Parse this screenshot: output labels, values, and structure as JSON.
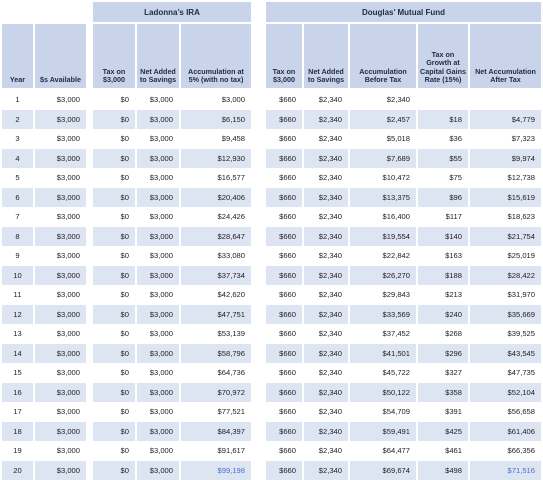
{
  "groups": {
    "ira": "Ladonna’s IRA",
    "fund": "Douglas’ Mutual Fund"
  },
  "headers": {
    "year": "Year",
    "available": "$s Available",
    "ira_tax": "Tax on $3,000",
    "ira_net": "Net Added to Savings",
    "ira_accum": "Accumulation at 5% (with no tax)",
    "fund_tax": "Tax on $3,000",
    "fund_net": "Net Added to Savings",
    "fund_before": "Accumulation Before Tax",
    "fund_cgtax": "Tax on Growth at Capital Gains Rate (15%)",
    "fund_after": "Net Accumulation After Tax"
  },
  "colors": {
    "header_bg": "#c9d4ea",
    "row_shade": "#dde4f2",
    "highlight_text": "#4a6fd0"
  },
  "rows": [
    {
      "year": "1",
      "available": "$3,000",
      "ira_tax": "$0",
      "ira_net": "$3,000",
      "ira_accum": "$3,000",
      "fund_tax": "$660",
      "fund_net": "$2,340",
      "fund_before": "$2,340",
      "fund_cgtax": "",
      "fund_after": ""
    },
    {
      "year": "2",
      "available": "$3,000",
      "ira_tax": "$0",
      "ira_net": "$3,000",
      "ira_accum": "$6,150",
      "fund_tax": "$660",
      "fund_net": "$2,340",
      "fund_before": "$2,457",
      "fund_cgtax": "$18",
      "fund_after": "$4,779"
    },
    {
      "year": "3",
      "available": "$3,000",
      "ira_tax": "$0",
      "ira_net": "$3,000",
      "ira_accum": "$9,458",
      "fund_tax": "$660",
      "fund_net": "$2,340",
      "fund_before": "$5,018",
      "fund_cgtax": "$36",
      "fund_after": "$7,323"
    },
    {
      "year": "4",
      "available": "$3,000",
      "ira_tax": "$0",
      "ira_net": "$3,000",
      "ira_accum": "$12,930",
      "fund_tax": "$660",
      "fund_net": "$2,340",
      "fund_before": "$7,689",
      "fund_cgtax": "$55",
      "fund_after": "$9,974"
    },
    {
      "year": "5",
      "available": "$3,000",
      "ira_tax": "$0",
      "ira_net": "$3,000",
      "ira_accum": "$16,577",
      "fund_tax": "$660",
      "fund_net": "$2,340",
      "fund_before": "$10,472",
      "fund_cgtax": "$75",
      "fund_after": "$12,738"
    },
    {
      "year": "6",
      "available": "$3,000",
      "ira_tax": "$0",
      "ira_net": "$3,000",
      "ira_accum": "$20,406",
      "fund_tax": "$660",
      "fund_net": "$2,340",
      "fund_before": "$13,375",
      "fund_cgtax": "$96",
      "fund_after": "$15,619"
    },
    {
      "year": "7",
      "available": "$3,000",
      "ira_tax": "$0",
      "ira_net": "$3,000",
      "ira_accum": "$24,426",
      "fund_tax": "$660",
      "fund_net": "$2,340",
      "fund_before": "$16,400",
      "fund_cgtax": "$117",
      "fund_after": "$18,623"
    },
    {
      "year": "8",
      "available": "$3,000",
      "ira_tax": "$0",
      "ira_net": "$3,000",
      "ira_accum": "$28,647",
      "fund_tax": "$660",
      "fund_net": "$2,340",
      "fund_before": "$19,554",
      "fund_cgtax": "$140",
      "fund_after": "$21,754"
    },
    {
      "year": "9",
      "available": "$3,000",
      "ira_tax": "$0",
      "ira_net": "$3,000",
      "ira_accum": "$33,080",
      "fund_tax": "$660",
      "fund_net": "$2,340",
      "fund_before": "$22,842",
      "fund_cgtax": "$163",
      "fund_after": "$25,019"
    },
    {
      "year": "10",
      "available": "$3,000",
      "ira_tax": "$0",
      "ira_net": "$3,000",
      "ira_accum": "$37,734",
      "fund_tax": "$660",
      "fund_net": "$2,340",
      "fund_before": "$26,270",
      "fund_cgtax": "$188",
      "fund_after": "$28,422"
    },
    {
      "year": "11",
      "available": "$3,000",
      "ira_tax": "$0",
      "ira_net": "$3,000",
      "ira_accum": "$42,620",
      "fund_tax": "$660",
      "fund_net": "$2,340",
      "fund_before": "$29,843",
      "fund_cgtax": "$213",
      "fund_after": "$31,970"
    },
    {
      "year": "12",
      "available": "$3,000",
      "ira_tax": "$0",
      "ira_net": "$3,000",
      "ira_accum": "$47,751",
      "fund_tax": "$660",
      "fund_net": "$2,340",
      "fund_before": "$33,569",
      "fund_cgtax": "$240",
      "fund_after": "$35,669"
    },
    {
      "year": "13",
      "available": "$3,000",
      "ira_tax": "$0",
      "ira_net": "$3,000",
      "ira_accum": "$53,139",
      "fund_tax": "$660",
      "fund_net": "$2,340",
      "fund_before": "$37,452",
      "fund_cgtax": "$268",
      "fund_after": "$39,525"
    },
    {
      "year": "14",
      "available": "$3,000",
      "ira_tax": "$0",
      "ira_net": "$3,000",
      "ira_accum": "$58,796",
      "fund_tax": "$660",
      "fund_net": "$2,340",
      "fund_before": "$41,501",
      "fund_cgtax": "$296",
      "fund_after": "$43,545"
    },
    {
      "year": "15",
      "available": "$3,000",
      "ira_tax": "$0",
      "ira_net": "$3,000",
      "ira_accum": "$64,736",
      "fund_tax": "$660",
      "fund_net": "$2,340",
      "fund_before": "$45,722",
      "fund_cgtax": "$327",
      "fund_after": "$47,735"
    },
    {
      "year": "16",
      "available": "$3,000",
      "ira_tax": "$0",
      "ira_net": "$3,000",
      "ira_accum": "$70,972",
      "fund_tax": "$660",
      "fund_net": "$2,340",
      "fund_before": "$50,122",
      "fund_cgtax": "$358",
      "fund_after": "$52,104"
    },
    {
      "year": "17",
      "available": "$3,000",
      "ira_tax": "$0",
      "ira_net": "$3,000",
      "ira_accum": "$77,521",
      "fund_tax": "$660",
      "fund_net": "$2,340",
      "fund_before": "$54,709",
      "fund_cgtax": "$391",
      "fund_after": "$56,658"
    },
    {
      "year": "18",
      "available": "$3,000",
      "ira_tax": "$0",
      "ira_net": "$3,000",
      "ira_accum": "$84,397",
      "fund_tax": "$660",
      "fund_net": "$2,340",
      "fund_before": "$59,491",
      "fund_cgtax": "$425",
      "fund_after": "$61,406"
    },
    {
      "year": "19",
      "available": "$3,000",
      "ira_tax": "$0",
      "ira_net": "$3,000",
      "ira_accum": "$91,617",
      "fund_tax": "$660",
      "fund_net": "$2,340",
      "fund_before": "$64,477",
      "fund_cgtax": "$461",
      "fund_after": "$66,356"
    },
    {
      "year": "20",
      "available": "$3,000",
      "ira_tax": "$0",
      "ira_net": "$3,000",
      "ira_accum": "$99,198",
      "fund_tax": "$660",
      "fund_net": "$2,340",
      "fund_before": "$69,674",
      "fund_cgtax": "$498",
      "fund_after": "$71,516"
    }
  ]
}
